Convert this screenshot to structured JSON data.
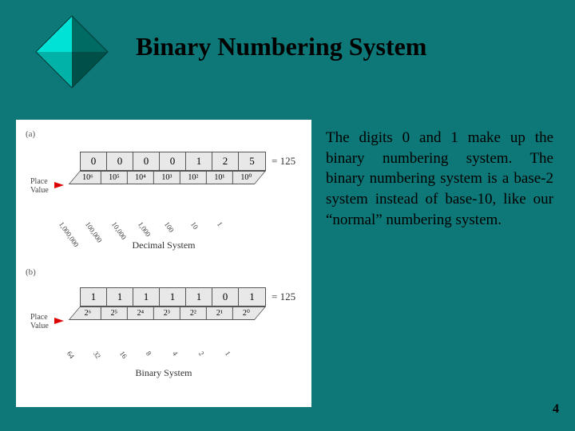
{
  "colors": {
    "background": "#0d7877",
    "diamond_fill": "#00e2d6",
    "diamond_stroke": "#003a36",
    "panel_bg": "#ffffff",
    "cell_bg": "#e8e8e8",
    "cell_border": "#555555",
    "arrow": "#d00000",
    "text": "#000000"
  },
  "title": "Binary Numbering System",
  "body_text": "The digits 0 and 1 make up the binary numbering system. The binary numbering system is a base-2 system instead of base-10, like our “normal” numbering system.",
  "page_number": "4",
  "figure": {
    "section_a": {
      "label": "(a)",
      "caption": "Decimal System",
      "place_label": "Place\nValue",
      "digits": [
        "0",
        "0",
        "0",
        "0",
        "1",
        "2",
        "5"
      ],
      "result": "= 125",
      "place_values": [
        "10⁶",
        "10⁵",
        "10⁴",
        "10³",
        "10²",
        "10¹",
        "10⁰"
      ],
      "under_values": [
        "1,000,000",
        "100,000",
        "10,000",
        "1,000",
        "100",
        "10",
        "1"
      ]
    },
    "section_b": {
      "label": "(b)",
      "caption": "Binary System",
      "place_label": "Place\nValue",
      "digits": [
        "1",
        "1",
        "1",
        "1",
        "1",
        "0",
        "1"
      ],
      "result": "= 125",
      "place_values": [
        "2⁶",
        "2⁵",
        "2⁴",
        "2³",
        "2²",
        "2¹",
        "2⁰"
      ],
      "under_values": [
        "64",
        "32",
        "16",
        "8",
        "4",
        "2",
        "1"
      ]
    }
  }
}
